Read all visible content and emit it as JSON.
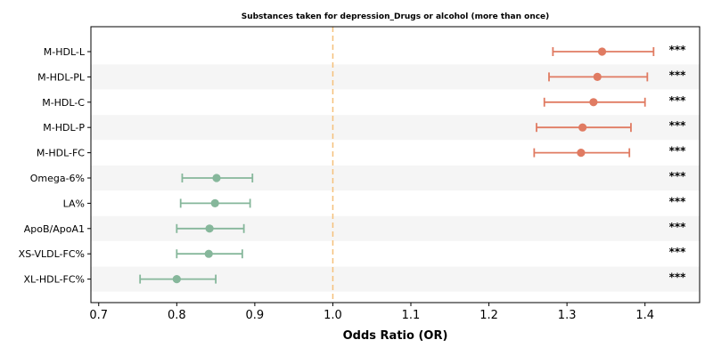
{
  "chart_data": {
    "type": "scatter",
    "title": "Substances taken for depression_Drugs or alcohol (more than once)",
    "xlabel": "Odds Ratio (OR)",
    "xlim": [
      0.69,
      1.47
    ],
    "xticks": [
      "0.7",
      "0.8",
      "0.9",
      "1.0",
      "1.1",
      "1.2",
      "1.3",
      "1.4"
    ],
    "reference_line": 1.0,
    "grid": false,
    "colors": {
      "increased": "#E07B62",
      "decreased": "#86B79B",
      "reference": "#F5C07A",
      "band": "#F5F5F5"
    },
    "rows": [
      {
        "label": "M-HDL-L",
        "or": 1.345,
        "lower": 1.282,
        "upper": 1.411,
        "sig": "***"
      },
      {
        "label": "M-HDL-PL",
        "or": 1.339,
        "lower": 1.277,
        "upper": 1.403,
        "sig": "***"
      },
      {
        "label": "M-HDL-C",
        "or": 1.334,
        "lower": 1.271,
        "upper": 1.4,
        "sig": "***"
      },
      {
        "label": "M-HDL-P",
        "or": 1.32,
        "lower": 1.261,
        "upper": 1.382,
        "sig": "***"
      },
      {
        "label": "M-HDL-FC",
        "or": 1.318,
        "lower": 1.258,
        "upper": 1.38,
        "sig": "***"
      },
      {
        "label": "Omega-6%",
        "or": 0.851,
        "lower": 0.807,
        "upper": 0.897,
        "sig": "***"
      },
      {
        "label": "LA%",
        "or": 0.849,
        "lower": 0.805,
        "upper": 0.894,
        "sig": "***"
      },
      {
        "label": "ApoB/ApoA1",
        "or": 0.842,
        "lower": 0.8,
        "upper": 0.886,
        "sig": "***"
      },
      {
        "label": "XS-VLDL-FC%",
        "or": 0.841,
        "lower": 0.8,
        "upper": 0.884,
        "sig": "***"
      },
      {
        "label": "XL-HDL-FC%",
        "or": 0.8,
        "lower": 0.753,
        "upper": 0.85,
        "sig": "***"
      }
    ]
  }
}
